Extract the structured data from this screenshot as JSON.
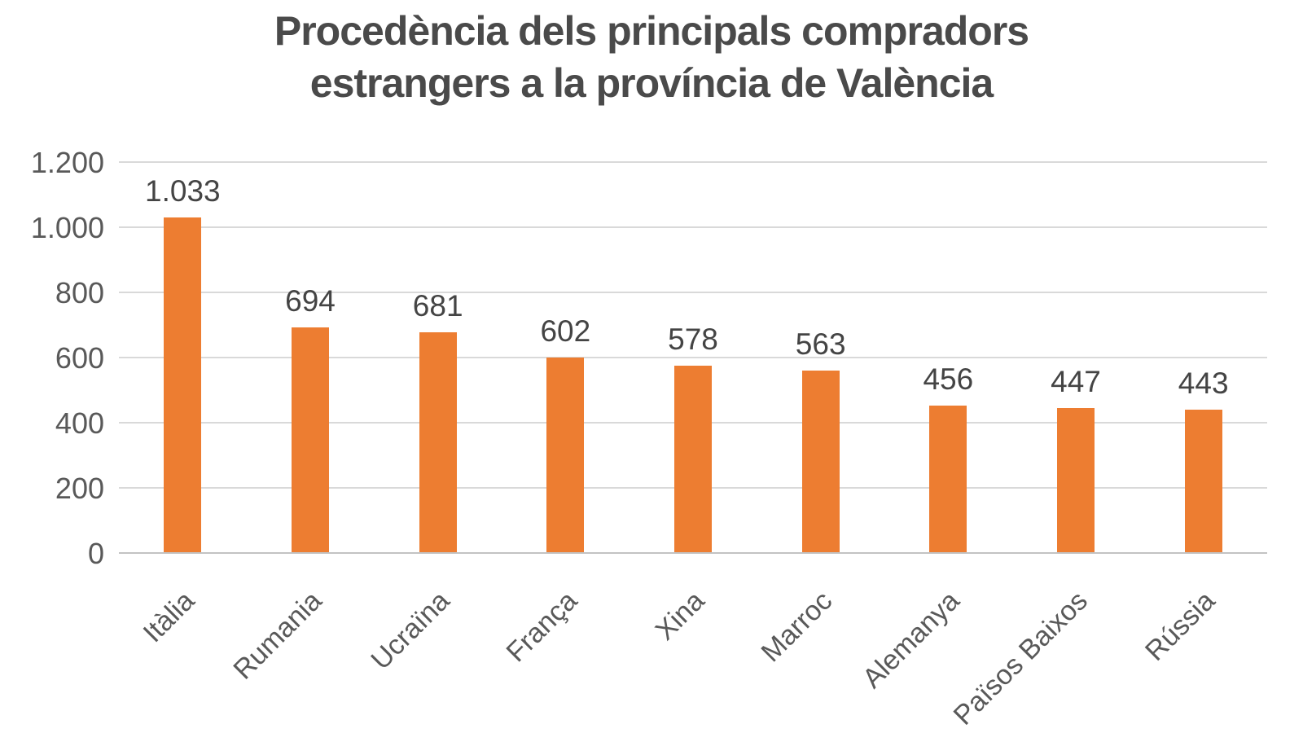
{
  "chart_data": {
    "type": "bar",
    "title": "Procedència dels principals compradors estrangers a la província de València",
    "title_lines": [
      "Procedència dels principals compradors",
      "estrangers a la província de València"
    ],
    "categories": [
      "Itàlia",
      "Rumania",
      "Ucraïna",
      "França",
      "Xina",
      "Marroc",
      "Alemanya",
      "Països Baixos",
      "Rússia"
    ],
    "values": [
      1033,
      694,
      681,
      602,
      578,
      563,
      456,
      447,
      443
    ],
    "data_labels": [
      "1.033",
      "694",
      "681",
      "602",
      "578",
      "563",
      "456",
      "447",
      "443"
    ],
    "xlabel": "",
    "ylabel": "",
    "ylim": [
      0,
      1200
    ],
    "ytick_step": 200,
    "ytick_labels": [
      "0",
      "200",
      "400",
      "600",
      "800",
      "1.000",
      "1.200"
    ],
    "grid": true,
    "legend_position": "none",
    "bar_color": "#ed7d31",
    "title_color": "#4a4a4a",
    "tick_color": "#595959",
    "gridline_color": "#d9d9d9"
  }
}
